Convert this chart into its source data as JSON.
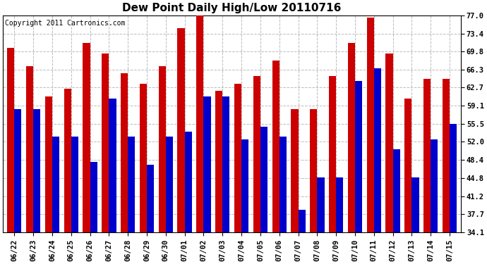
{
  "title": "Dew Point Daily High/Low 20110716",
  "copyright": "Copyright 2011 Cartronics.com",
  "dates": [
    "06/22",
    "06/23",
    "06/24",
    "06/25",
    "06/26",
    "06/27",
    "06/28",
    "06/29",
    "06/30",
    "07/01",
    "07/02",
    "07/03",
    "07/04",
    "07/05",
    "07/06",
    "07/07",
    "07/08",
    "07/09",
    "07/10",
    "07/11",
    "07/12",
    "07/13",
    "07/14",
    "07/15"
  ],
  "highs": [
    70.5,
    67.0,
    61.0,
    62.5,
    71.5,
    69.5,
    65.5,
    63.5,
    67.0,
    74.5,
    77.5,
    62.0,
    63.5,
    65.0,
    68.0,
    58.5,
    58.5,
    65.0,
    71.5,
    76.5,
    69.5,
    60.5,
    64.5,
    64.5
  ],
  "lows": [
    58.5,
    58.5,
    53.0,
    53.0,
    48.0,
    60.5,
    53.0,
    47.5,
    53.0,
    54.0,
    61.0,
    61.0,
    52.5,
    55.0,
    53.0,
    38.5,
    45.0,
    45.0,
    64.0,
    66.5,
    50.5,
    45.0,
    52.5,
    55.5
  ],
  "high_color": "#cc0000",
  "low_color": "#0000cc",
  "bg_color": "#ffffff",
  "grid_color": "#bbbbbb",
  "yticks": [
    34.1,
    37.7,
    41.2,
    44.8,
    48.4,
    52.0,
    55.5,
    59.1,
    62.7,
    66.3,
    69.8,
    73.4,
    77.0
  ],
  "ymin": 34.1,
  "ymax": 77.0,
  "title_fontsize": 11,
  "copyright_fontsize": 7,
  "tick_fontsize": 7.5,
  "bar_width": 0.38
}
